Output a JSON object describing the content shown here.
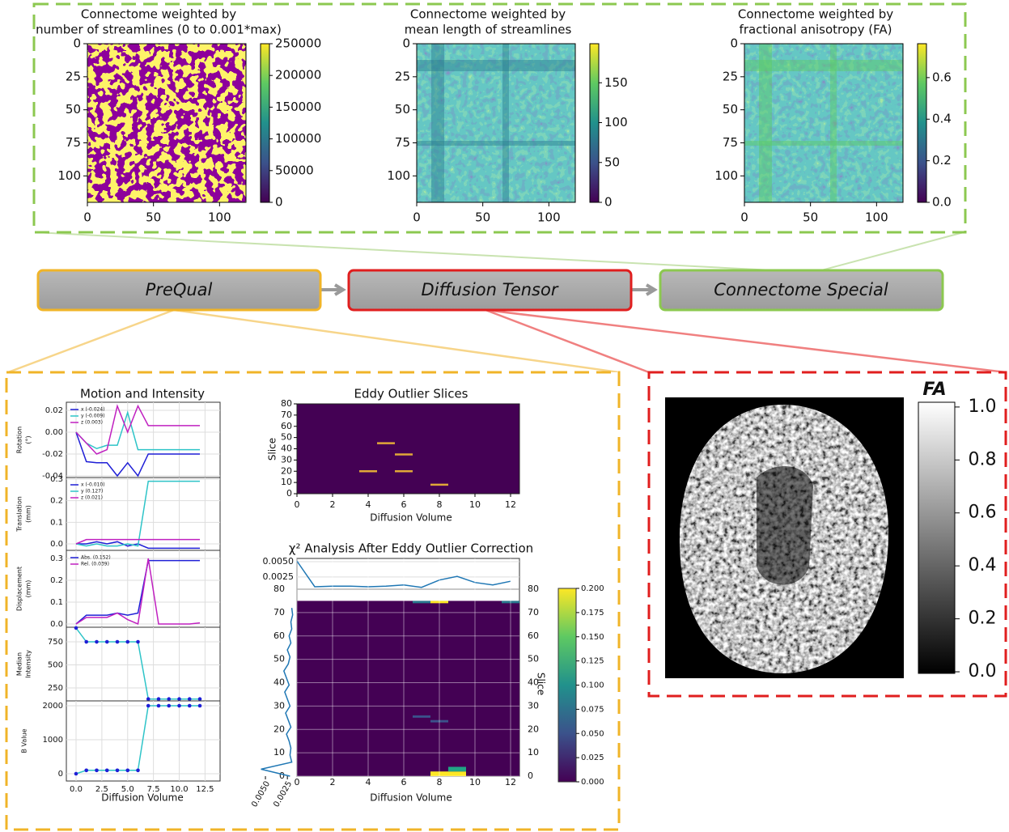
{
  "connectomes": [
    {
      "title": [
        "Connectome weighted by",
        "number of streamlines (0 to 0.001*max)"
      ],
      "lim": [
        0,
        120
      ],
      "xticks": [
        "0",
        "50",
        "100"
      ],
      "yticks": [
        "0",
        "25",
        "50",
        "75",
        "100"
      ],
      "colorbar": {
        "lim": [
          0,
          250000
        ],
        "ticks": [
          "250000",
          "200000",
          "150000",
          "100000",
          "50000",
          "0"
        ]
      }
    },
    {
      "title": [
        "Connectome weighted by",
        "mean length of streamlines"
      ],
      "lim": [
        0,
        120
      ],
      "xticks": [
        "0",
        "50",
        "100"
      ],
      "yticks": [
        "0",
        "25",
        "50",
        "75",
        "100"
      ],
      "colorbar": {
        "lim": [
          0,
          199
        ],
        "ticks": [
          "150",
          "100",
          "50",
          "0"
        ]
      }
    },
    {
      "title": [
        "Connectome weighted by",
        "fractional anisotropy (FA)"
      ],
      "lim": [
        0,
        120
      ],
      "xticks": [
        "0",
        "50",
        "100"
      ],
      "yticks": [
        "0",
        "25",
        "50",
        "75",
        "100"
      ],
      "colorbar": {
        "lim": [
          0,
          0.763
        ],
        "ticks": [
          "0.6",
          "0.4",
          "0.2",
          "0.0"
        ]
      }
    }
  ],
  "pipeline": {
    "steps": [
      "PreQual",
      "Diffusion Tensor",
      "Connectome Special"
    ]
  },
  "prequal": {
    "motion": {
      "title": "Motion and Intensity",
      "xlabel": "Diffusion Volume",
      "xlim": [
        -0.94,
        13.96
      ],
      "xticks": [
        "0.0",
        "2.5",
        "5.0",
        "7.5",
        "10.0",
        "12.5"
      ],
      "x": [
        0,
        1,
        2,
        3,
        4,
        5,
        6,
        7,
        8,
        9,
        10,
        11,
        12
      ],
      "panels": [
        {
          "ylabel": [
            "Rotation",
            "(°)"
          ],
          "ylim": [
            -0.0415,
            0.0274
          ],
          "yticks": [
            "0.02",
            "0.00",
            "-0.02",
            "-0.04"
          ],
          "series": [
            {
              "name": "x (-0.024)",
              "color": "#1f1fd6",
              "values": [
                0,
                -0.027,
                -0.028,
                -0.028,
                -0.04,
                -0.028,
                -0.04,
                -0.02,
                -0.02,
                -0.02,
                -0.02,
                -0.02,
                -0.02
              ]
            },
            {
              "name": "y (-0.009)",
              "color": "#2ec4c8",
              "values": [
                0,
                -0.01,
                -0.015,
                -0.012,
                -0.012,
                0.018,
                -0.016,
                -0.016,
                -0.016,
                -0.016,
                -0.016,
                -0.016,
                -0.016
              ]
            },
            {
              "name": "z (0.003)",
              "color": "#c020c0",
              "values": [
                0,
                -0.01,
                -0.02,
                -0.016,
                0.024,
                0.0,
                0.024,
                0.006,
                0.006,
                0.006,
                0.006,
                0.006,
                0.006
              ]
            }
          ]
        },
        {
          "ylabel": [
            "Translation",
            "(mm)"
          ],
          "ylim": [
            -0.03,
            0.3075
          ],
          "yticks": [
            "0.3",
            "0.2",
            "0.1",
            "0.0"
          ],
          "series": [
            {
              "name": "x (-0.010)",
              "color": "#1f1fd6",
              "values": [
                0,
                0,
                0.01,
                0,
                0.01,
                -0.01,
                0,
                -0.02,
                -0.02,
                -0.02,
                -0.02,
                -0.02,
                -0.02
              ]
            },
            {
              "name": "y (0.127)",
              "color": "#2ec4c8",
              "values": [
                0,
                -0.01,
                0,
                -0.01,
                -0.01,
                0,
                -0.01,
                0.29,
                0.29,
                0.29,
                0.29,
                0.29,
                0.29
              ]
            },
            {
              "name": "z (0.021)",
              "color": "#c020c0",
              "values": [
                0,
                0.02,
                0.02,
                0.02,
                0.02,
                0.02,
                0.02,
                0.02,
                0.02,
                0.02,
                0.02,
                0.02,
                0.02
              ]
            }
          ]
        },
        {
          "ylabel": [
            "Displacement",
            "(mm)"
          ],
          "ylim": [
            -0.015,
            0.337
          ],
          "yticks": [
            "0.3",
            "0.2",
            "0.1",
            "0.0"
          ],
          "series": [
            {
              "name": "Abs. (0.152)",
              "color": "#1f1fd6",
              "values": [
                0,
                0.04,
                0.04,
                0.04,
                0.05,
                0.04,
                0.05,
                0.29,
                0.29,
                0.29,
                0.29,
                0.29,
                0.29
              ]
            },
            {
              "name": "Rel. (0.039)",
              "color": "#c020c0",
              "values": [
                0,
                0.03,
                0.03,
                0.03,
                0.05,
                0.02,
                0,
                0.3,
                0,
                0,
                0,
                0,
                0.005
              ]
            }
          ]
        },
        {
          "ylabel": [
            "Median",
            "Intensity"
          ],
          "ylim": [
            110,
            908
          ],
          "yticks": [
            "750",
            "500",
            "250"
          ],
          "markers": true,
          "series": [
            {
              "color": "#2ec4c8",
              "marker_color": "#1f1fd6",
              "values": [
                900,
                750,
                750,
                750,
                750,
                750,
                750,
                130,
                130,
                130,
                130,
                130,
                130
              ]
            }
          ]
        },
        {
          "ylabel": [
            "B Value"
          ],
          "ylim": [
            -214,
            2143
          ],
          "yticks": [
            "2000",
            "1000",
            "0"
          ],
          "markers": true,
          "series": [
            {
              "color": "#2ec4c8",
              "marker_color": "#1f1fd6",
              "values": [
                0,
                100,
                100,
                100,
                100,
                100,
                100,
                2000,
                2000,
                2000,
                2000,
                2000,
                2000
              ]
            }
          ]
        }
      ]
    },
    "eddy": {
      "title": "Eddy Outlier Slices",
      "xlabel": "Diffusion Volume",
      "ylabel": "Slice",
      "xlim": [
        0,
        12.5
      ],
      "ylim": [
        0,
        80
      ],
      "xticks": [
        "0",
        "2",
        "4",
        "6",
        "8",
        "10",
        "12"
      ],
      "yticks": [
        "0",
        "10",
        "20",
        "30",
        "40",
        "50",
        "60",
        "70",
        "80"
      ],
      "outliers": {
        "volume": [
          4,
          5,
          6,
          6,
          8
        ],
        "slice": [
          20,
          45,
          35,
          20,
          8
        ]
      }
    },
    "chi2": {
      "title": "χ² Analysis After Eddy Outlier Correction",
      "xlabel": "Diffusion Volume",
      "ylabel": "Slice",
      "xlim": [
        0,
        12.5
      ],
      "xticks": [
        "0",
        "2",
        "4",
        "6",
        "8",
        "10",
        "12"
      ],
      "top": {
        "ylim": [
          0.0005,
          0.00553
        ],
        "yticks": [
          "0.0050",
          "0.0025"
        ],
        "x": [
          0,
          1,
          2,
          3,
          4,
          5,
          6,
          7,
          8,
          9,
          10,
          11,
          12
        ],
        "values": [
          0.0051,
          0.0009,
          0.001,
          0.001,
          0.0009,
          0.001,
          0.0012,
          0.0008,
          0.002,
          0.0026,
          0.0016,
          0.0012,
          0.0018
        ]
      },
      "main": {
        "ylim": [
          0,
          80
        ],
        "yticks": [
          "0",
          "10",
          "20",
          "30",
          "40",
          "50",
          "60",
          "70",
          "80"
        ]
      },
      "profile": {
        "xlim": [
          0.00574,
          0.0015
        ],
        "xticks": [
          "0.0050",
          "0.0025"
        ],
        "slices": [
          0,
          3,
          6,
          9,
          12,
          15,
          18,
          21,
          24,
          27,
          30,
          33,
          36,
          39,
          42,
          45,
          48,
          51,
          54,
          57,
          60,
          63,
          66,
          69,
          72
        ],
        "values": [
          0.0022,
          0.0055,
          0.002,
          0.0022,
          0.0021,
          0.0023,
          0.0026,
          0.0021,
          0.0024,
          0.0027,
          0.0022,
          0.0025,
          0.0028,
          0.0023,
          0.0026,
          0.0029,
          0.0024,
          0.0022,
          0.0025,
          0.0021,
          0.0023,
          0.002,
          0.0021,
          0.0019,
          0.002
        ]
      },
      "colorbar": {
        "lim": [
          0,
          0.2
        ],
        "ticks": [
          "0.200",
          "0.175",
          "0.150",
          "0.125",
          "0.100",
          "0.075",
          "0.050",
          "0.025",
          "0.000"
        ]
      }
    }
  },
  "tensor": {
    "colorbar_label": "FA",
    "colorbar_lim": [
      -0.006,
      1.018
    ],
    "colorbar_ticks": [
      "1.0",
      "0.8",
      "0.6",
      "0.4",
      "0.2",
      "0.0"
    ]
  }
}
